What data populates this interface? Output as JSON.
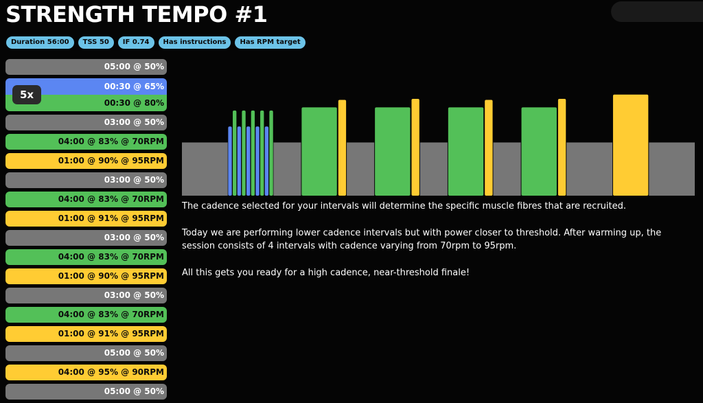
{
  "workout": {
    "title": "STRENGTH TEMPO #1",
    "tags": [
      "Duration 56:00",
      "TSS 50",
      "IF 0.74",
      "Has instructions",
      "Has RPM target"
    ]
  },
  "intervals": [
    {
      "kind": "single",
      "color": "gray",
      "label": "05:00 @ 50%"
    },
    {
      "kind": "repeat",
      "repeat_label": "5x",
      "parts": [
        {
          "color": "blue",
          "label": "00:30 @ 65%"
        },
        {
          "color": "green",
          "label": "00:30 @ 80%"
        }
      ]
    },
    {
      "kind": "single",
      "color": "gray",
      "label": "03:00 @ 50%"
    },
    {
      "kind": "single",
      "color": "green",
      "label": "04:00 @ 83% @ 70RPM"
    },
    {
      "kind": "single",
      "color": "yellow",
      "label": "01:00 @ 90% @ 95RPM"
    },
    {
      "kind": "single",
      "color": "gray",
      "label": "03:00 @ 50%"
    },
    {
      "kind": "single",
      "color": "green",
      "label": "04:00 @ 83% @ 70RPM"
    },
    {
      "kind": "single",
      "color": "yellow",
      "label": "01:00 @ 91% @ 95RPM"
    },
    {
      "kind": "single",
      "color": "gray",
      "label": "03:00 @ 50%"
    },
    {
      "kind": "single",
      "color": "green",
      "label": "04:00 @ 83% @ 70RPM"
    },
    {
      "kind": "single",
      "color": "yellow",
      "label": "01:00 @ 90% @ 95RPM"
    },
    {
      "kind": "single",
      "color": "gray",
      "label": "03:00 @ 50%"
    },
    {
      "kind": "single",
      "color": "green",
      "label": "04:00 @ 83% @ 70RPM"
    },
    {
      "kind": "single",
      "color": "yellow",
      "label": "01:00 @ 91% @ 95RPM"
    },
    {
      "kind": "single",
      "color": "gray",
      "label": "05:00 @ 50%"
    },
    {
      "kind": "single",
      "color": "yellow",
      "label": "04:00 @ 95% @ 90RPM"
    },
    {
      "kind": "single",
      "color": "gray",
      "label": "05:00 @ 50%"
    }
  ],
  "profile": {
    "colors": {
      "gray": "#777777",
      "blue": "#5b86f2",
      "green": "#53c058",
      "yellow": "#ffcc33"
    },
    "segments": [
      {
        "duration_s": 300,
        "power_pct": 50,
        "color": "gray"
      },
      {
        "duration_s": 30,
        "power_pct": 65,
        "color": "blue"
      },
      {
        "duration_s": 30,
        "power_pct": 80,
        "color": "green"
      },
      {
        "duration_s": 30,
        "power_pct": 65,
        "color": "blue"
      },
      {
        "duration_s": 30,
        "power_pct": 80,
        "color": "green"
      },
      {
        "duration_s": 30,
        "power_pct": 65,
        "color": "blue"
      },
      {
        "duration_s": 30,
        "power_pct": 80,
        "color": "green"
      },
      {
        "duration_s": 30,
        "power_pct": 65,
        "color": "blue"
      },
      {
        "duration_s": 30,
        "power_pct": 80,
        "color": "green"
      },
      {
        "duration_s": 30,
        "power_pct": 65,
        "color": "blue"
      },
      {
        "duration_s": 30,
        "power_pct": 80,
        "color": "green"
      },
      {
        "duration_s": 180,
        "power_pct": 50,
        "color": "gray"
      },
      {
        "duration_s": 240,
        "power_pct": 83,
        "color": "green"
      },
      {
        "duration_s": 60,
        "power_pct": 90,
        "color": "yellow"
      },
      {
        "duration_s": 180,
        "power_pct": 50,
        "color": "gray"
      },
      {
        "duration_s": 240,
        "power_pct": 83,
        "color": "green"
      },
      {
        "duration_s": 60,
        "power_pct": 91,
        "color": "yellow"
      },
      {
        "duration_s": 180,
        "power_pct": 50,
        "color": "gray"
      },
      {
        "duration_s": 240,
        "power_pct": 83,
        "color": "green"
      },
      {
        "duration_s": 60,
        "power_pct": 90,
        "color": "yellow"
      },
      {
        "duration_s": 180,
        "power_pct": 50,
        "color": "gray"
      },
      {
        "duration_s": 240,
        "power_pct": 83,
        "color": "green"
      },
      {
        "duration_s": 60,
        "power_pct": 91,
        "color": "yellow"
      },
      {
        "duration_s": 300,
        "power_pct": 50,
        "color": "gray"
      },
      {
        "duration_s": 240,
        "power_pct": 95,
        "color": "yellow"
      },
      {
        "duration_s": 300,
        "power_pct": 50,
        "color": "gray"
      }
    ]
  },
  "description": {
    "paragraphs": [
      "The cadence selected for your intervals will determine the specific muscle fibres that are recruited.",
      "Today we are performing lower cadence intervals but with power closer to threshold. After warming up, the session consists of 4 intervals with cadence varying from 70rpm to 95rpm.",
      "All this gets you ready for a high cadence, near-threshold finale!"
    ]
  }
}
